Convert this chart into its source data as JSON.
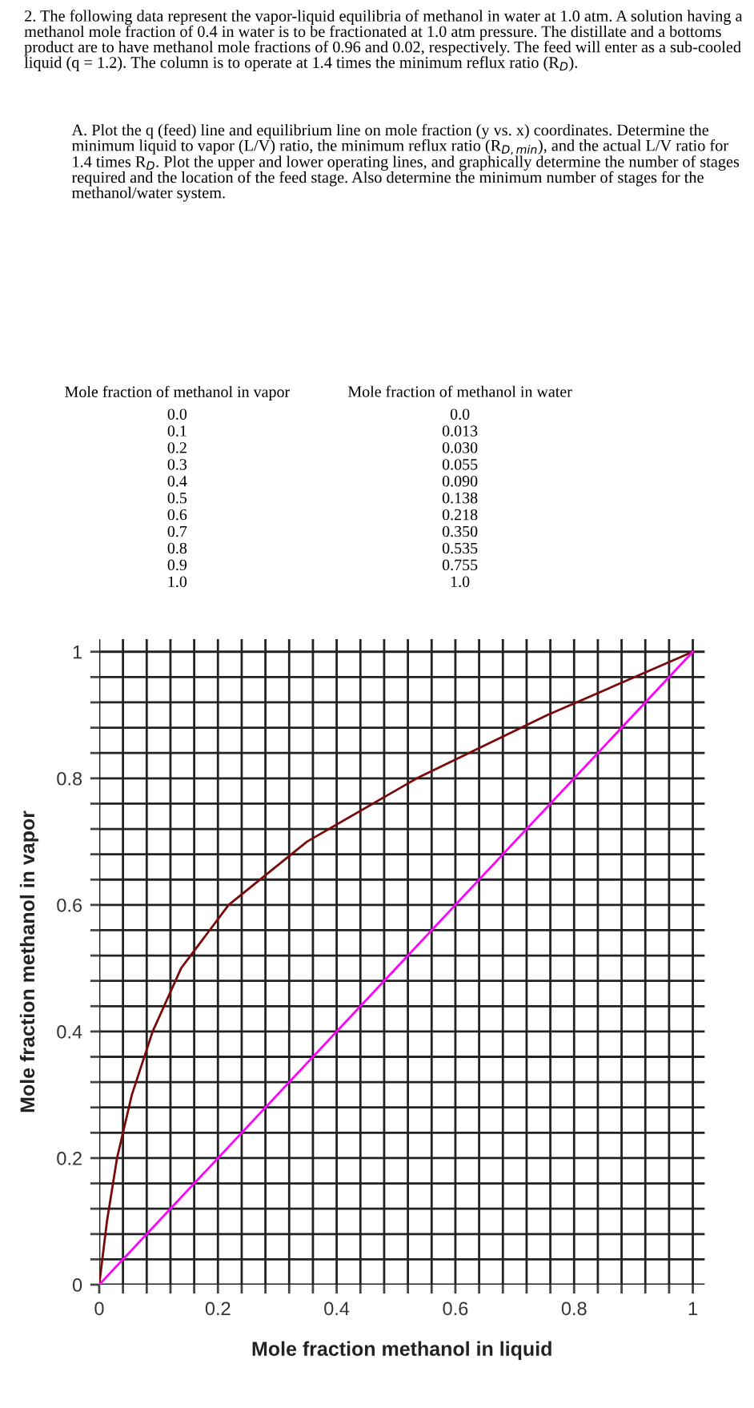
{
  "chart_data": {
    "type": "line",
    "xlabel": "Mole fraction methanol in liquid",
    "ylabel": "Mole fraction methanol in vapor",
    "annotations": [
      "2. The following data represent the vapor-liquid equilibria of methanol in water at 1.0 atm. A solution having a methanol mole fraction of 0.4 in water is to be fractionated at 1.0 atm pressure. The distillate and a bottoms product are to have methanol mole fractions of 0.96 and 0.02, respectively. The feed will enter as a sub-cooled liquid (q = 1.2). The column is to operate at 1.4 times the minimum reflux ratio (R$_{D}$).",
      "A. Plot the q (feed) line and equilibrium line on mole fraction (y vs. x) coordinates. Determine the minimum liquid to vapor (L/V) ratio, the minimum reflux ratio (R$_{D,min}$), and the actual L/V ratio for 1.4 times R$_{D}$. Plot the upper and lower operating lines, and graphically determine the number of stages required and the location of the feed stage. Also determine the minimum number of stages for the methanol/water system.",
      "Mole fraction of methanol in vapor",
      "Mole fraction of methanol in water",
      "0.0\n0.1\n0.2\n0.3\n0.4\n0.5\n0.6\n0.7\n0.8\n0.9\n1.0",
      "0.0\n0.013\n0.030\n0.055\n0.090\n0.138\n0.218\n0.350\n0.535\n0.755\n1.0"
    ],
    "series": [
      {
        "color": "#7a0a0a",
        "x": [
          0.0,
          0.013,
          0.03,
          0.055,
          0.09,
          0.138,
          0.218,
          0.35,
          0.535,
          0.755,
          1.0
        ],
        "values": [
          0.0,
          0.1,
          0.2,
          0.3,
          0.4,
          0.5,
          0.6,
          0.7,
          0.8,
          0.9,
          1.0
        ]
      },
      {
        "color": "#ff00ff",
        "x": [
          0,
          1
        ],
        "values": [
          0,
          1
        ]
      }
    ],
    "xlim": [
      0,
      1.02
    ],
    "ylim": [
      0,
      1.02
    ],
    "xticks": [
      0,
      {
        "value": 0.04,
        "label": null
      },
      {
        "value": 0.08,
        "label": null
      },
      {
        "value": 0.12,
        "label": null
      },
      {
        "value": 0.16,
        "label": null
      },
      0.2,
      {
        "value": 0.24,
        "label": null
      },
      {
        "value": 0.28,
        "label": null
      },
      {
        "value": 0.32,
        "label": null
      },
      {
        "value": 0.36,
        "label": null
      },
      0.4,
      {
        "value": 0.44,
        "label": null
      },
      {
        "value": 0.48,
        "label": null
      },
      {
        "value": 0.52,
        "label": null
      },
      {
        "value": 0.56,
        "label": null
      },
      0.6,
      {
        "value": 0.64,
        "label": null
      },
      {
        "value": 0.68,
        "label": null
      },
      {
        "value": 0.72,
        "label": null
      },
      {
        "value": 0.76,
        "label": null
      },
      0.8,
      {
        "value": 0.84,
        "label": null
      },
      {
        "value": 0.88,
        "label": null
      },
      {
        "value": 0.92,
        "label": null
      },
      {
        "value": 0.96,
        "label": null
      },
      1
    ],
    "yticks": [
      0,
      {
        "value": 0.04,
        "label": null
      },
      {
        "value": 0.08,
        "label": null
      },
      {
        "value": 0.12,
        "label": null
      },
      {
        "value": 0.16,
        "label": null
      },
      0.2,
      {
        "value": 0.24,
        "label": null
      },
      {
        "value": 0.28,
        "label": null
      },
      {
        "value": 0.32,
        "label": null
      },
      {
        "value": 0.36,
        "label": null
      },
      0.4,
      {
        "value": 0.44,
        "label": null
      },
      {
        "value": 0.48,
        "label": null
      },
      {
        "value": 0.52,
        "label": null
      },
      {
        "value": 0.56,
        "label": null
      },
      0.6,
      {
        "value": 0.64,
        "label": null
      },
      {
        "value": 0.68,
        "label": null
      },
      {
        "value": 0.72,
        "label": null
      },
      {
        "value": 0.76,
        "label": null
      },
      0.8,
      {
        "value": 0.84,
        "label": null
      },
      {
        "value": 0.88,
        "label": null
      },
      {
        "value": 0.92,
        "label": null
      },
      {
        "value": 0.96,
        "label": null
      },
      1
    ],
    "grid": true,
    "marker": "none",
    "line_style": "solid"
  }
}
